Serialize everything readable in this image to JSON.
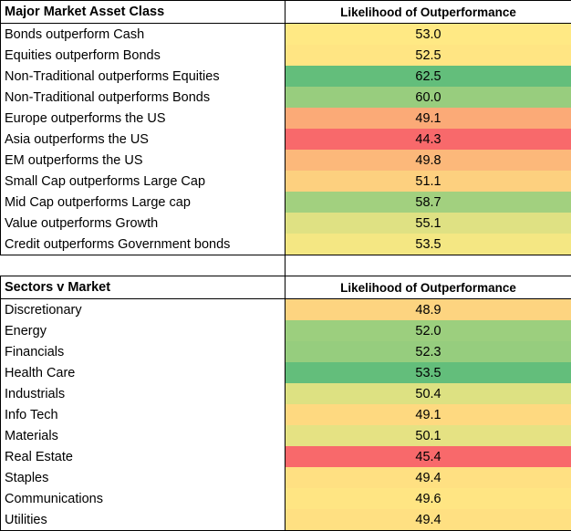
{
  "colors": {
    "h44": "#f8696b",
    "h45": "#f8706d",
    "h49a": "#fbaa77",
    "h49b": "#fdbe7b",
    "h49c": "#fdd17f",
    "h50": "#fedd81",
    "h51": "#fed980",
    "h52": "#ffe282",
    "h53": "#ffe984",
    "h55": "#dfe183",
    "h58": "#a2d07f",
    "h60": "#98cd7e",
    "h62": "#63be7b"
  },
  "section1": {
    "header": "Major Market Asset Class",
    "value_header": "Likelihood of Outperformance",
    "rows": [
      {
        "label": "Bonds outperform Cash",
        "value": "53.0",
        "color": "#ffe984"
      },
      {
        "label": "Equities outperform Bonds",
        "value": "52.5",
        "color": "#ffe583"
      },
      {
        "label": "Non-Traditional outperforms Equities",
        "value": "62.5",
        "color": "#63be7b"
      },
      {
        "label": "Non-Traditional outperforms Bonds",
        "value": "60.0",
        "color": "#98cd7e"
      },
      {
        "label": "Europe outperforms the US",
        "value": "49.1",
        "color": "#fbaa77"
      },
      {
        "label": "Asia outperforms the US",
        "value": "44.3",
        "color": "#f8696b"
      },
      {
        "label": "EM outperforms the US",
        "value": "49.8",
        "color": "#fcb87a"
      },
      {
        "label": "Small Cap outperforms Large Cap",
        "value": "51.1",
        "color": "#fdd07f"
      },
      {
        "label": "Mid Cap outperforms Large cap",
        "value": "58.7",
        "color": "#a2d07f"
      },
      {
        "label": "Value outperforms Growth",
        "value": "55.1",
        "color": "#dfe183"
      },
      {
        "label": "Credit outperforms Government bonds",
        "value": "53.5",
        "color": "#f4e783"
      }
    ]
  },
  "section2": {
    "header": "Sectors v Market",
    "value_header": "Likelihood of Outperformance",
    "rows": [
      {
        "label": "Discretionary",
        "value": "48.9",
        "color": "#fdd480"
      },
      {
        "label": "Energy",
        "value": "52.0",
        "color": "#9ccf7e"
      },
      {
        "label": "Financials",
        "value": "52.3",
        "color": "#96cd7e"
      },
      {
        "label": "Health Care",
        "value": "53.5",
        "color": "#63be7b"
      },
      {
        "label": "Industrials",
        "value": "50.4",
        "color": "#dde182"
      },
      {
        "label": "Info Tech",
        "value": "49.1",
        "color": "#fed980"
      },
      {
        "label": "Materials",
        "value": "50.1",
        "color": "#e5e283"
      },
      {
        "label": "Real Estate",
        "value": "45.4",
        "color": "#f8696b"
      },
      {
        "label": "Staples",
        "value": "49.4",
        "color": "#ffe082"
      },
      {
        "label": "Communications",
        "value": "49.6",
        "color": "#ffe583"
      },
      {
        "label": "Utilities",
        "value": "49.4",
        "color": "#ffe082"
      }
    ]
  }
}
